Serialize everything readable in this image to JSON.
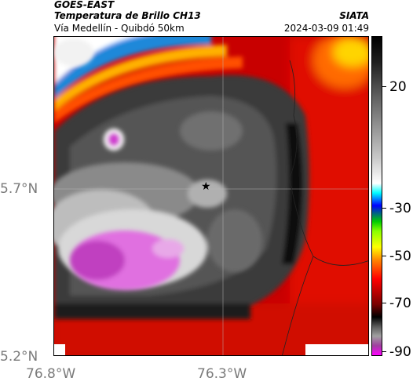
{
  "header": {
    "satellite": "GOES-EAST",
    "product": "Temperatura de Brillo CH13",
    "route": "Vía Medellín - Quibdó 50km",
    "organization": "SIATA",
    "timestamp": "2024-03-09 01:49"
  },
  "map": {
    "lat_ticks": [
      "5.7°N",
      "5.2°N"
    ],
    "lon_ticks": [
      "76.8°W",
      "76.3°W"
    ],
    "marker_icon": "star-icon"
  },
  "colorbar": {
    "ticks": [
      "20",
      "-30",
      "-50",
      "-70",
      "-90"
    ],
    "palette": [
      "#ff00ff",
      "#a0a0a0",
      "#000000",
      "#ff0000",
      "#ffff00",
      "#00cc00",
      "#0000ff",
      "#00ffff",
      "#ffffff",
      "#000000"
    ]
  }
}
